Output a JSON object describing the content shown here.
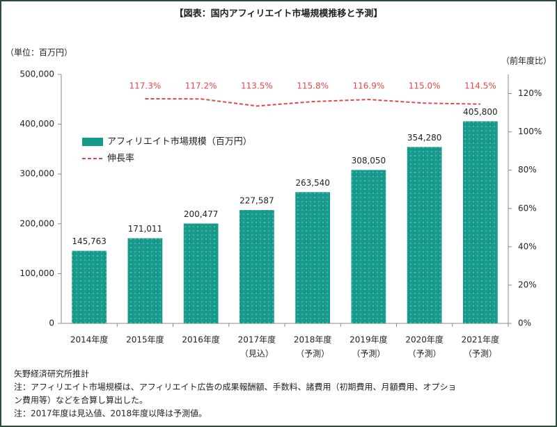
{
  "chart_data": {
    "type": "bar_line",
    "title": "【図表：国内アフィリエイト市場規模推移と予測】",
    "y_unit": "（単位：百万円）",
    "y2_unit": "（前年度比）",
    "categories": [
      "2014年度",
      "2015年度",
      "2016年度",
      "2017年度",
      "2018年度",
      "2019年度",
      "2020年度",
      "2021年度"
    ],
    "category_notes": [
      null,
      null,
      null,
      "（見込）",
      "（予測）",
      "（予測）",
      "（予測）",
      "（予測）"
    ],
    "series": [
      {
        "name": "アフィリエイト市場規模（百万円）",
        "color": "#17998c",
        "kind": "bar",
        "values": [
          145763,
          171011,
          200477,
          227587,
          263540,
          308050,
          354280,
          405800
        ],
        "value_labels": [
          "145,763",
          "171,011",
          "200,477",
          "227,587",
          "263,540",
          "308,050",
          "354,280",
          "405,800"
        ]
      },
      {
        "name": "伸長率",
        "color": "#e04848",
        "kind": "line",
        "axis": "y2",
        "values": [
          null,
          117.3,
          117.2,
          113.5,
          115.8,
          116.9,
          115.0,
          114.5
        ],
        "value_labels": [
          null,
          "117.3%",
          "117.2%",
          "113.5%",
          "115.8%",
          "116.9%",
          "115.0%",
          "114.5%"
        ]
      }
    ],
    "ylim": [
      0,
      500000
    ],
    "yticks": [
      0,
      {
        "value": 100000,
        "label": "100,000"
      },
      {
        "value": 200000,
        "label": "200,000"
      },
      {
        "value": 300000,
        "label": "300,000"
      },
      {
        "value": 400000,
        "label": "400,000"
      },
      {
        "value": 500000,
        "label": "500,000"
      }
    ],
    "y2lim": [
      0,
      130
    ],
    "y2ticks": [
      {
        "value": 0,
        "label": "0%"
      },
      {
        "value": 20,
        "label": "20%"
      },
      {
        "value": 40,
        "label": "40%"
      },
      {
        "value": 60,
        "label": "60%"
      },
      {
        "value": 80,
        "label": "80%"
      },
      {
        "value": 100,
        "label": "100%"
      },
      {
        "value": 120,
        "label": "120%"
      }
    ],
    "notes": [
      "矢野経済研究所推計",
      "注：アフィリエイト市場規模は、アフィリエイト広告の成果報酬額、手数料、諸費用（初期費用、月額費用、オプショ",
      "ン費用等）などを合算し算出した。",
      "注：2017年度は見込値、2018年度以降は予測値。"
    ]
  }
}
